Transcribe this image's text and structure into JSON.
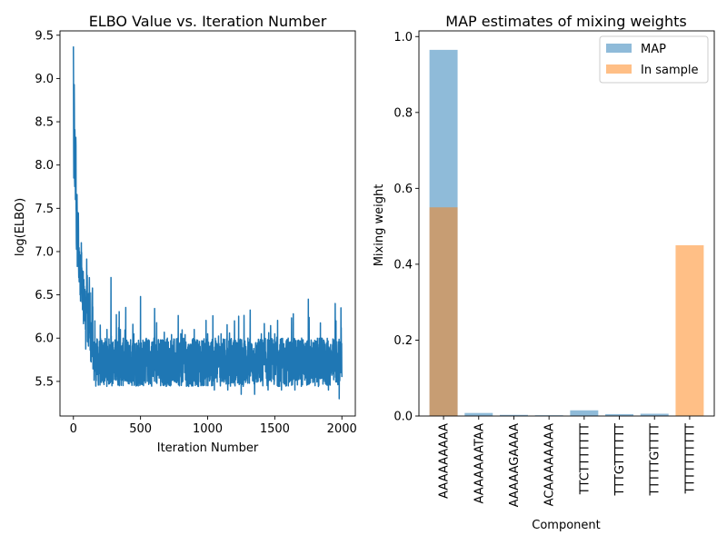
{
  "chart_data": [
    {
      "type": "line",
      "title": "ELBO Value vs. Iteration Number",
      "xlabel": "Iteration Number",
      "ylabel": "log(ELBO)",
      "xlim": [
        -100,
        2100
      ],
      "ylim": [
        5.1,
        9.55
      ],
      "xticks": [
        0,
        500,
        1000,
        1500,
        2000
      ],
      "yticks": [
        5.5,
        6.0,
        6.5,
        7.0,
        7.5,
        8.0,
        8.5,
        9.0,
        9.5
      ],
      "ytick_labels": [
        "5.5",
        "6.0",
        "6.5",
        "7.0",
        "7.5",
        "8.0",
        "8.5",
        "9.0",
        "9.5"
      ],
      "color": "#1f77b4",
      "series_description_points": [
        [
          0,
          9.37
        ],
        [
          3,
          7.85
        ],
        [
          6,
          8.93
        ],
        [
          9,
          7.82
        ],
        [
          12,
          8.3
        ],
        [
          15,
          7.6
        ],
        [
          18,
          8.32
        ],
        [
          22,
          7.1
        ],
        [
          26,
          7.55
        ],
        [
          30,
          6.95
        ],
        [
          35,
          7.45
        ],
        [
          40,
          6.7
        ],
        [
          45,
          7.0
        ],
        [
          50,
          6.5
        ],
        [
          60,
          6.9
        ],
        [
          70,
          6.4
        ],
        [
          80,
          6.6
        ],
        [
          90,
          6.1
        ],
        [
          100,
          6.65
        ],
        [
          110,
          5.95
        ],
        [
          120,
          6.5
        ],
        [
          130,
          5.8
        ],
        [
          140,
          6.35
        ],
        [
          150,
          5.75
        ],
        [
          160,
          6.2
        ],
        [
          180,
          5.65
        ],
        [
          200,
          6.15
        ],
        [
          220,
          5.55
        ],
        [
          250,
          6.1
        ],
        [
          280,
          6.7
        ],
        [
          300,
          5.6
        ],
        [
          350,
          6.1
        ],
        [
          400,
          5.5
        ],
        [
          450,
          6.05
        ],
        [
          500,
          6.48
        ],
        [
          550,
          5.5
        ],
        [
          600,
          6.0
        ],
        [
          650,
          5.45
        ],
        [
          700,
          6.0
        ],
        [
          750,
          5.5
        ],
        [
          800,
          6.05
        ],
        [
          850,
          5.45
        ],
        [
          900,
          6.1
        ],
        [
          950,
          5.45
        ],
        [
          1000,
          6.05
        ],
        [
          1050,
          5.4
        ],
        [
          1100,
          6.05
        ],
        [
          1150,
          5.4
        ],
        [
          1200,
          6.2
        ],
        [
          1250,
          5.35
        ],
        [
          1300,
          6.0
        ],
        [
          1350,
          5.35
        ],
        [
          1400,
          6.05
        ],
        [
          1450,
          5.4
        ],
        [
          1500,
          6.05
        ],
        [
          1550,
          5.4
        ],
        [
          1600,
          6.0
        ],
        [
          1650,
          5.4
        ],
        [
          1700,
          6.0
        ],
        [
          1750,
          6.45
        ],
        [
          1800,
          5.45
        ],
        [
          1850,
          6.0
        ],
        [
          1900,
          5.4
        ],
        [
          1950,
          6.4
        ],
        [
          1980,
          5.3
        ],
        [
          1995,
          6.12
        ],
        [
          2000,
          5.55
        ]
      ]
    },
    {
      "type": "bar",
      "title": "MAP estimates of mixing weights",
      "xlabel": "Component",
      "ylabel": "Mixing weight",
      "ylim": [
        0,
        1.015
      ],
      "yticks": [
        0.0,
        0.2,
        0.4,
        0.6,
        0.8,
        1.0
      ],
      "ytick_labels": [
        "0.0",
        "0.2",
        "0.4",
        "0.6",
        "0.8",
        "1.0"
      ],
      "categories": [
        "AAAAAAAAA",
        "AAAAAAATAA",
        "AAAAAGAAAA",
        "ACAAAAAAAA",
        "TTCTTTTTTT",
        "TTTGTTTTTT",
        "TTTTTGTTTT",
        "TTTTTTTTTT"
      ],
      "series": [
        {
          "name": "MAP",
          "color": "#1f77b4",
          "alpha": 0.5,
          "values": [
            0.965,
            0.008,
            0.003,
            0.002,
            0.015,
            0.005,
            0.006,
            0.0
          ]
        },
        {
          "name": "In sample",
          "color": "#ff7f0e",
          "alpha": 0.5,
          "values": [
            0.55,
            0.0,
            0.0,
            0.0,
            0.0,
            0.0,
            0.0,
            0.45
          ]
        }
      ],
      "legend_position": "top-right"
    }
  ]
}
